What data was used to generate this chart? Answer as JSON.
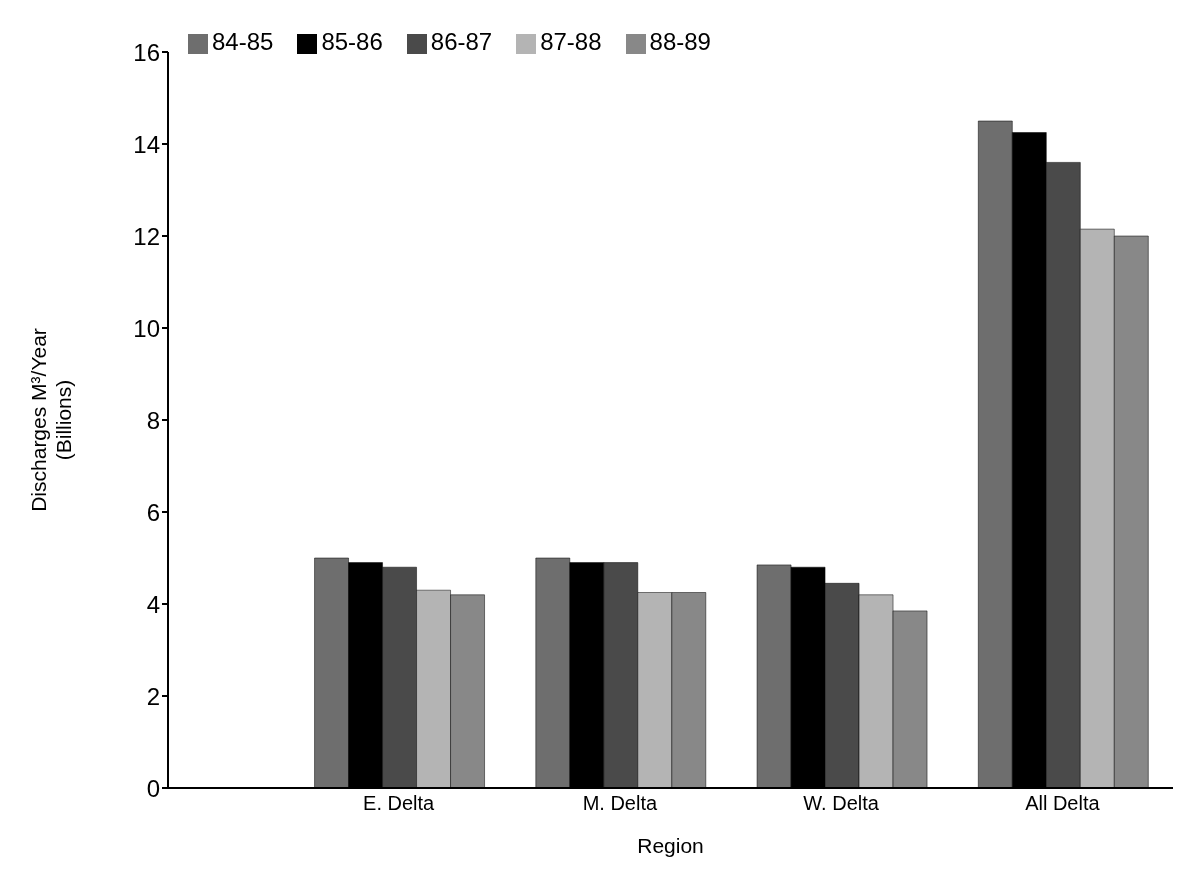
{
  "chart_data": {
    "type": "bar",
    "xlabel": "Region",
    "ylabel": "Discharges M³/Year\n(Billions)",
    "categories": [
      "E. Delta",
      "M. Delta",
      "W. Delta",
      "All Delta"
    ],
    "series": [
      {
        "name": "84-85",
        "color": "#6e6e6e",
        "values": [
          5.0,
          5.0,
          4.85,
          14.5
        ]
      },
      {
        "name": "85-86",
        "color": "#000000",
        "values": [
          4.9,
          4.9,
          4.8,
          14.25
        ]
      },
      {
        "name": "86-87",
        "color": "#4a4a4a",
        "values": [
          4.8,
          4.9,
          4.45,
          13.6
        ]
      },
      {
        "name": "87-88",
        "color": "#b4b4b4",
        "values": [
          4.3,
          4.25,
          4.2,
          12.15
        ]
      },
      {
        "name": "88-89",
        "color": "#888888",
        "values": [
          4.2,
          4.25,
          3.85,
          12.0
        ]
      }
    ],
    "ylim": [
      0,
      16
    ],
    "yticks": [
      0,
      2,
      4,
      6,
      8,
      10,
      12,
      14,
      16
    ],
    "grid": false,
    "legend": "top left"
  }
}
